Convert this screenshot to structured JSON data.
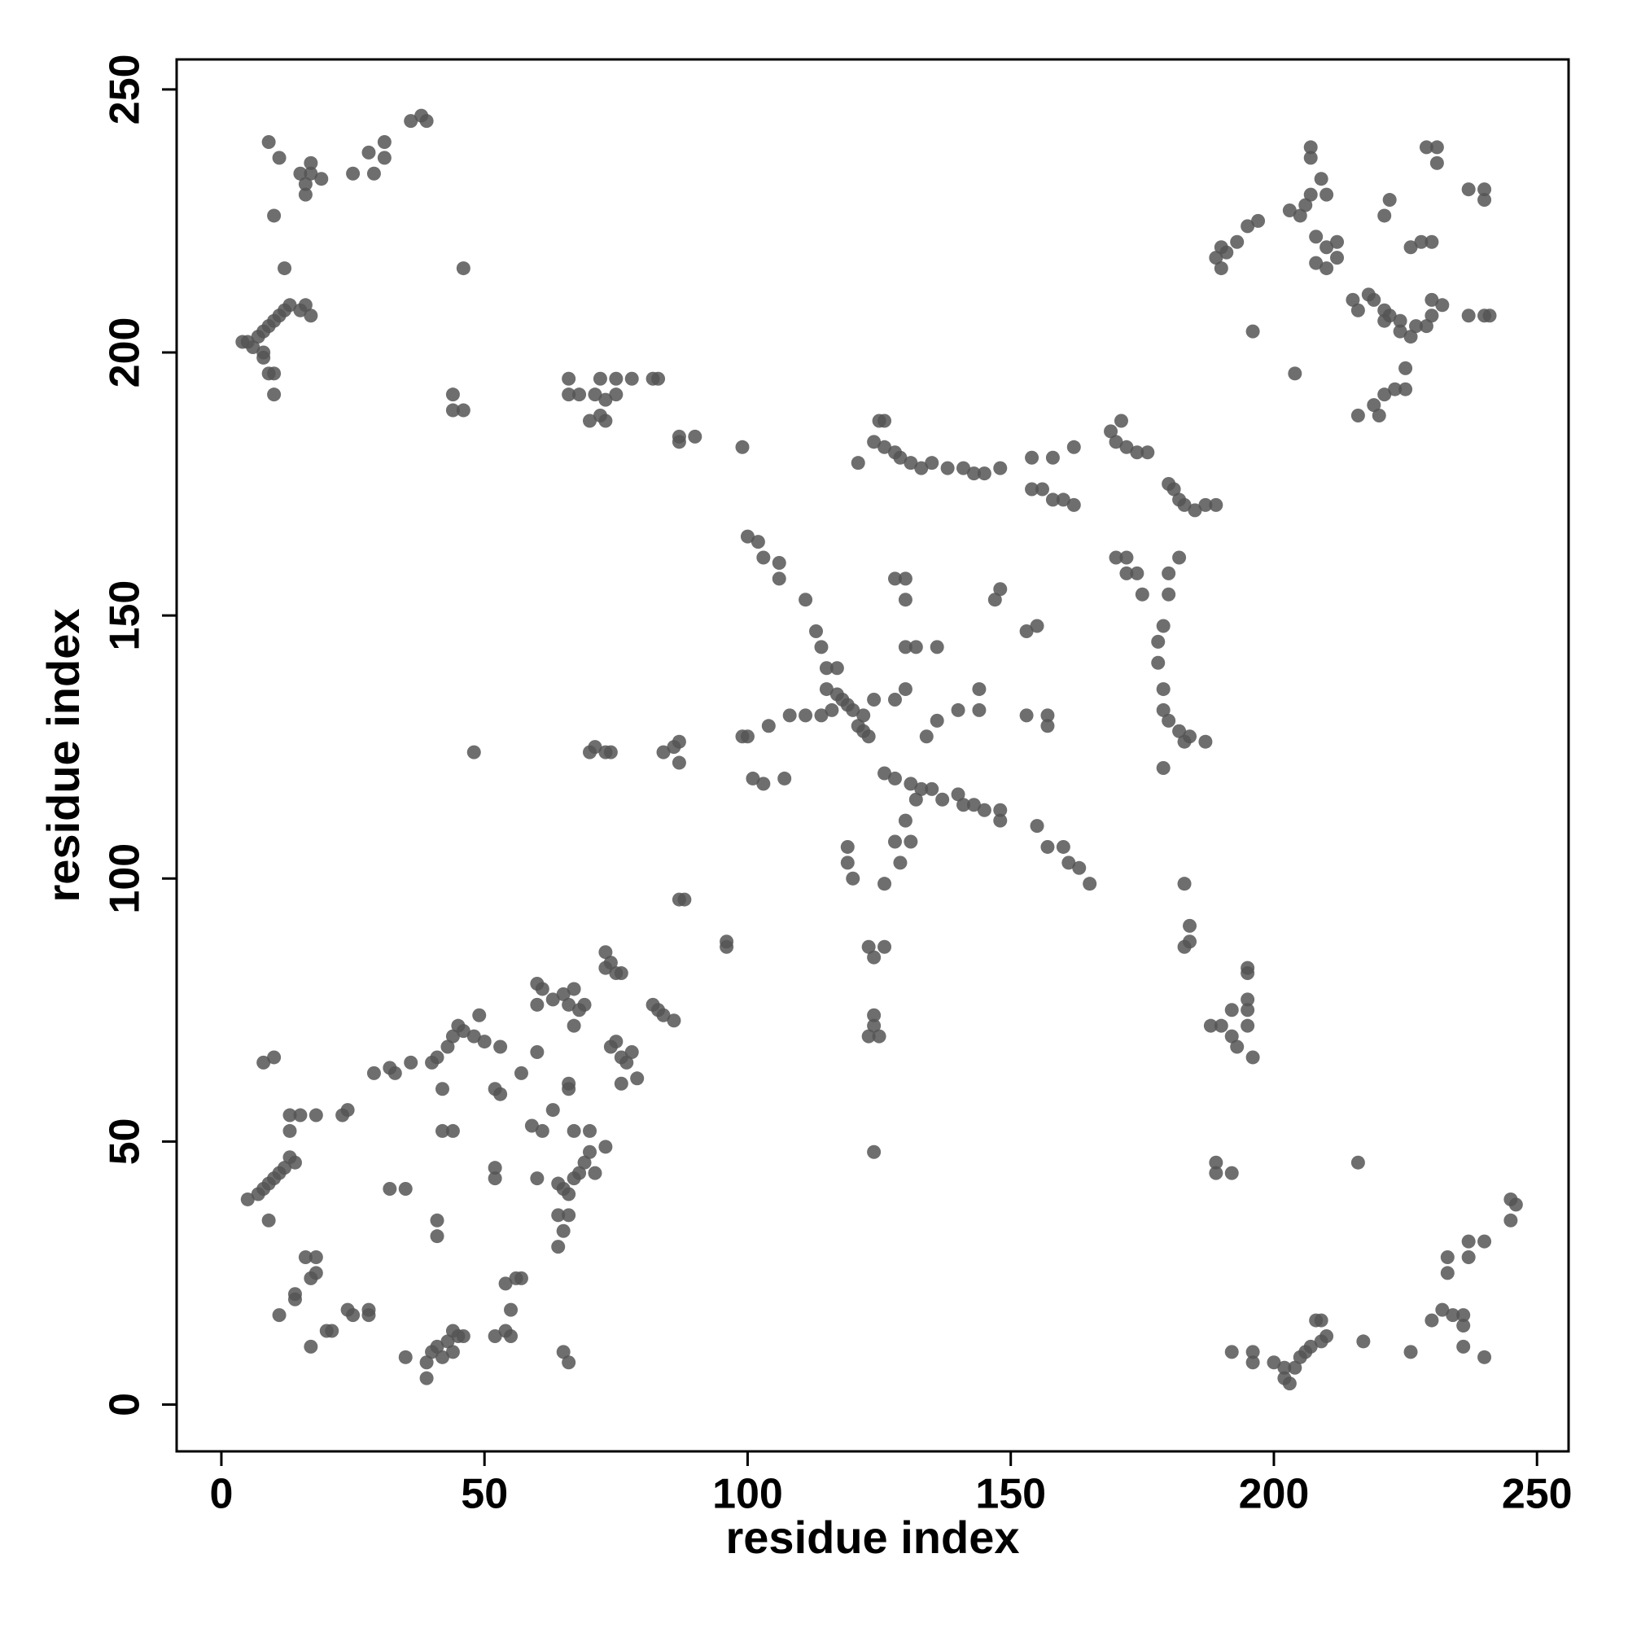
{
  "chart_data": {
    "type": "scatter",
    "x_label": "residue index",
    "y_label": "residue index",
    "color": "#555555",
    "xlim": [
      -8.5,
      256
    ],
    "ylim": [
      -8.9,
      255.7
    ],
    "xticks": [
      0,
      50,
      100,
      150,
      200,
      250
    ],
    "yticks": [
      0,
      50,
      100,
      150,
      200,
      250
    ],
    "x": [
      9,
      11,
      15,
      16,
      17,
      19,
      17,
      16,
      10,
      12,
      46,
      28,
      31,
      31,
      25,
      29,
      36,
      38,
      39,
      4,
      5,
      6,
      7,
      8,
      8,
      9,
      10,
      11,
      12,
      13,
      15,
      16,
      17,
      9,
      10,
      10,
      8,
      44,
      44,
      46,
      66,
      66,
      68,
      71,
      73,
      75,
      72,
      73,
      70,
      75,
      72,
      82,
      83,
      78,
      87,
      87,
      90,
      99,
      100,
      102,
      103,
      106,
      106,
      111,
      113,
      114,
      115,
      117,
      115,
      117,
      118,
      119,
      116,
      120,
      122,
      121,
      122,
      123,
      114,
      111,
      108,
      104,
      100,
      124,
      128,
      130,
      130,
      130,
      132,
      136,
      128,
      130,
      136,
      134,
      126,
      128,
      131,
      133,
      135,
      132,
      137,
      140,
      141,
      143,
      145,
      148,
      148,
      130,
      131,
      128,
      129,
      126,
      120,
      119,
      119,
      101,
      103,
      107,
      99,
      155,
      157,
      160,
      161,
      163,
      165,
      153,
      155,
      147,
      148,
      144,
      144,
      140,
      153,
      157,
      157,
      123,
      124,
      126,
      124,
      124,
      123,
      125,
      124,
      96,
      96,
      88,
      87,
      125,
      126,
      124,
      126,
      128,
      129,
      131,
      133,
      135,
      138,
      141,
      143,
      145,
      148,
      121,
      154,
      158,
      162,
      154,
      156,
      158,
      160,
      162,
      169,
      170,
      171,
      172,
      174,
      176,
      180,
      181,
      182,
      183,
      185,
      187,
      189,
      170,
      172,
      172,
      174,
      175,
      180,
      180,
      182,
      179,
      178,
      178,
      179,
      179,
      180,
      182,
      183,
      184,
      187,
      179,
      183,
      184,
      184,
      183,
      188,
      190,
      192,
      192,
      193,
      195,
      195,
      195,
      196,
      195,
      195,
      189,
      189,
      192,
      216,
      189,
      190,
      191,
      193,
      195,
      197,
      190,
      196,
      204,
      203,
      205,
      206,
      207,
      207,
      207,
      209,
      210,
      208,
      210,
      212,
      208,
      210,
      212,
      215,
      216,
      218,
      219,
      221,
      222,
      221,
      224,
      224,
      226,
      227,
      229,
      230,
      232,
      230,
      225,
      223,
      225,
      219,
      220,
      216,
      221,
      221,
      222,
      226,
      228,
      230,
      229,
      231,
      231,
      237,
      240,
      240,
      237,
      240,
      241,
      200,
      202,
      202,
      203,
      204,
      205,
      206,
      207,
      209,
      210,
      208,
      209,
      192,
      196,
      196,
      217,
      226,
      230,
      232,
      233,
      233,
      234,
      236,
      236,
      237,
      237,
      240,
      240,
      236,
      245,
      245,
      246,
      5,
      7,
      8,
      9,
      10,
      11,
      12,
      13,
      14,
      9,
      13,
      13,
      15,
      18,
      23,
      24,
      8,
      10,
      29,
      32,
      33,
      36,
      32,
      35,
      41,
      41,
      42,
      42,
      44,
      40,
      41,
      43,
      44,
      45,
      46,
      48,
      50,
      49,
      53,
      52,
      53,
      52,
      52,
      57,
      60,
      60,
      61,
      60,
      63,
      65,
      66,
      67,
      68,
      69,
      67,
      66,
      66,
      59,
      61,
      60,
      64,
      65,
      66,
      67,
      68,
      69,
      70,
      70,
      67,
      71,
      73,
      63,
      64,
      65,
      64,
      74,
      73,
      75,
      76,
      73,
      74,
      75,
      76,
      77,
      78,
      79,
      76,
      82,
      83,
      84,
      86,
      66,
      16,
      18,
      18,
      17,
      14,
      14,
      11,
      17,
      20,
      21,
      24,
      25,
      28,
      28,
      35,
      39,
      39,
      40,
      41,
      42,
      43,
      44,
      45,
      46,
      44,
      52,
      54,
      55,
      55,
      54,
      56,
      57,
      65,
      66,
      48,
      70,
      71,
      73,
      74,
      84,
      86,
      87,
      87
    ],
    "values": [
      240,
      237,
      234,
      232,
      234,
      233,
      236,
      230,
      226,
      216,
      216,
      238,
      240,
      237,
      234,
      234,
      244,
      245,
      244,
      202,
      202,
      201,
      203,
      204,
      200,
      205,
      206,
      207,
      208,
      209,
      208,
      209,
      207,
      196,
      196,
      192,
      199,
      192,
      189,
      189,
      195,
      192,
      192,
      192,
      191,
      192,
      188,
      187,
      187,
      195,
      195,
      195,
      195,
      195,
      184,
      183,
      184,
      182,
      165,
      164,
      161,
      160,
      157,
      153,
      147,
      144,
      140,
      140,
      136,
      135,
      134,
      133,
      132,
      132,
      131,
      129,
      128,
      127,
      131,
      131,
      131,
      129,
      127,
      134,
      157,
      157,
      153,
      144,
      144,
      144,
      134,
      136,
      130,
      127,
      120,
      119,
      118,
      117,
      117,
      115,
      115,
      116,
      114,
      114,
      113,
      113,
      111,
      111,
      107,
      107,
      103,
      99,
      100,
      103,
      106,
      119,
      118,
      119,
      127,
      110,
      106,
      106,
      103,
      102,
      99,
      147,
      148,
      153,
      155,
      132,
      136,
      132,
      131,
      131,
      129,
      87,
      85,
      87,
      74,
      72,
      70,
      70,
      48,
      88,
      87,
      96,
      96,
      187,
      187,
      183,
      182,
      181,
      180,
      179,
      178,
      179,
      178,
      178,
      177,
      177,
      178,
      179,
      180,
      180,
      182,
      174,
      174,
      172,
      172,
      171,
      185,
      183,
      187,
      182,
      181,
      181,
      175,
      174,
      172,
      171,
      170,
      171,
      171,
      161,
      161,
      158,
      158,
      154,
      158,
      154,
      161,
      148,
      145,
      141,
      136,
      132,
      130,
      128,
      126,
      127,
      126,
      121,
      99,
      91,
      88,
      87,
      72,
      72,
      75,
      70,
      68,
      77,
      75,
      72,
      66,
      83,
      82,
      46,
      44,
      44,
      46,
      218,
      220,
      219,
      221,
      224,
      225,
      216,
      204,
      196,
      227,
      226,
      228,
      230,
      239,
      237,
      233,
      230,
      222,
      220,
      221,
      217,
      216,
      218,
      210,
      208,
      211,
      210,
      208,
      207,
      206,
      206,
      204,
      203,
      205,
      205,
      207,
      209,
      210,
      197,
      193,
      193,
      190,
      188,
      188,
      192,
      226,
      229,
      220,
      221,
      221,
      239,
      239,
      236,
      231,
      231,
      229,
      207,
      207,
      207,
      8,
      7,
      5,
      4,
      7,
      9,
      10,
      11,
      12,
      13,
      16,
      16,
      10,
      10,
      8,
      12,
      10,
      16,
      18,
      28,
      25,
      17,
      15,
      17,
      28,
      31,
      31,
      9,
      11,
      39,
      35,
      38,
      39,
      40,
      41,
      42,
      43,
      44,
      45,
      47,
      46,
      35,
      55,
      52,
      55,
      55,
      55,
      56,
      65,
      66,
      63,
      64,
      63,
      65,
      41,
      41,
      35,
      32,
      60,
      52,
      52,
      65,
      66,
      68,
      70,
      72,
      71,
      70,
      69,
      74,
      68,
      60,
      59,
      45,
      43,
      63,
      67,
      80,
      79,
      76,
      77,
      78,
      76,
      79,
      75,
      76,
      72,
      60,
      61,
      53,
      52,
      43,
      42,
      41,
      40,
      43,
      44,
      46,
      48,
      52,
      52,
      44,
      49,
      56,
      36,
      33,
      30,
      84,
      86,
      82,
      82,
      83,
      68,
      69,
      66,
      65,
      67,
      62,
      61,
      76,
      75,
      74,
      73,
      36,
      28,
      28,
      25,
      24,
      20,
      21,
      17,
      11,
      14,
      14,
      18,
      17,
      17,
      18,
      9,
      5,
      8,
      10,
      11,
      9,
      12,
      14,
      13,
      13,
      10,
      13,
      14,
      13,
      18,
      23,
      24,
      24,
      10,
      8,
      124,
      124,
      125,
      124,
      124,
      124,
      125,
      126,
      122
    ]
  }
}
